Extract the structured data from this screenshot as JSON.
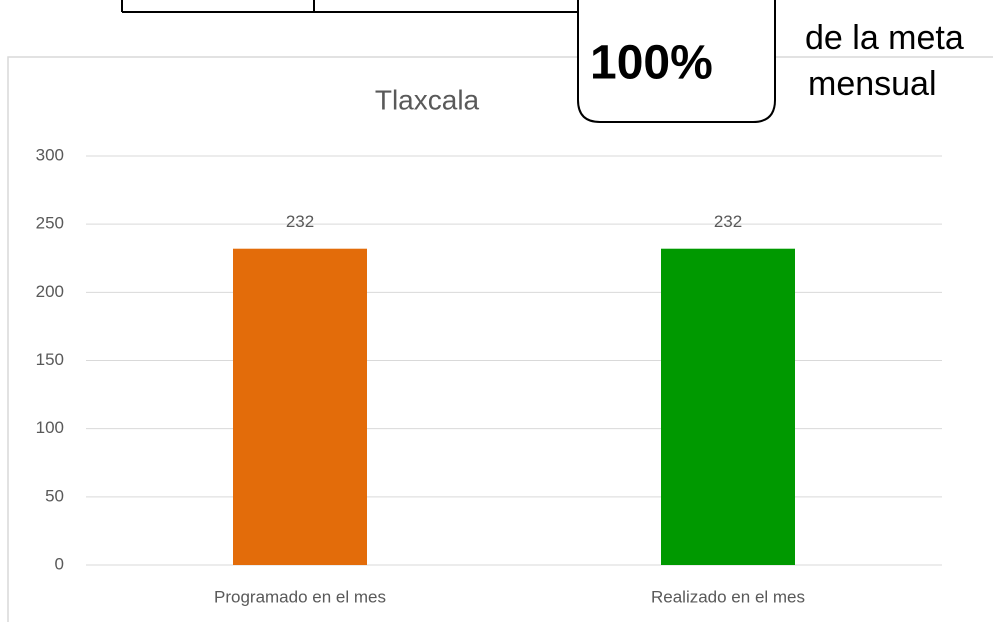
{
  "chart_data": {
    "type": "bar",
    "title": "Tlaxcala",
    "categories": [
      "Programado en el mes",
      "Realizado en el mes"
    ],
    "values": [
      232,
      232
    ],
    "colors": [
      "#e36c0a",
      "#009900"
    ],
    "ylim": [
      0,
      300
    ],
    "yticks": [
      0,
      50,
      100,
      150,
      200,
      250,
      300
    ],
    "grid": true,
    "data_labels": true
  },
  "callout": {
    "text": "100%",
    "caption": [
      "de la meta",
      "mensual"
    ]
  }
}
